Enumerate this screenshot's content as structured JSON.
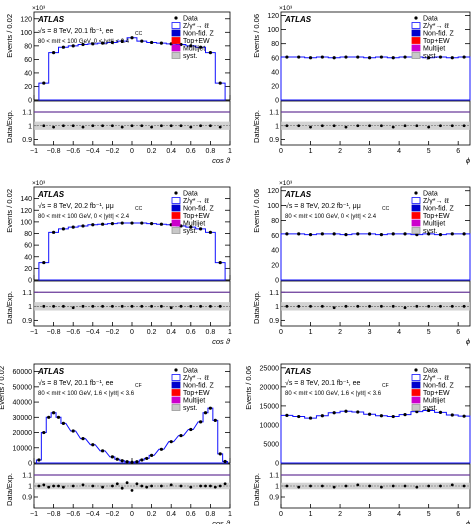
{
  "legend_labels": {
    "data": "Data",
    "signal": "Z/γ*→ ℓℓ",
    "nonfid": "Non-fid. Z",
    "topew": "Top+EW",
    "multijet": "Multijet",
    "syst": "syst."
  },
  "colors": {
    "signal_fill": "#ffffff",
    "signal_line": "#1010ff",
    "nonfid": "#0000cc",
    "topew": "#ff0000",
    "multijet": "#cc00cc",
    "syst": "#c8c8c8",
    "ratio_line": "#6a3a9a"
  },
  "chart_data": [
    {
      "id": "p0",
      "type": "line",
      "atlas": "ATLAS",
      "energy_text": "√s = 8 TeV, 20.1 fb⁻¹, ee",
      "channel_sub": "CC",
      "cuts_text": "80 < mℓℓ < 100 GeV, 0 < |yℓℓ| < 2.4",
      "ylabel": "Events / 0.02",
      "ratio_label": "Data/Exp.",
      "xlabel": "cos ϑ",
      "exponent": "×10³",
      "xlim": [
        -1,
        1
      ],
      "ylim": [
        0,
        130
      ],
      "yticks": [
        "0",
        "20",
        "40",
        "60",
        "80",
        "100",
        "120"
      ],
      "yticks_val": [
        0,
        20,
        40,
        60,
        80,
        100,
        120
      ],
      "xticks": [
        "−1",
        "−0.8",
        "−0.6",
        "−0.4",
        "−0.2",
        "0",
        "0.2",
        "0.4",
        "0.6",
        "0.8",
        "1"
      ],
      "xticks_val": [
        -1,
        -0.8,
        -0.6,
        -0.4,
        -0.2,
        0,
        0.2,
        0.4,
        0.6,
        0.8,
        1
      ],
      "ratio_ticks": [
        "0.9",
        "1",
        "1.1"
      ],
      "ratio_ticks_val": [
        0.9,
        1.0,
        1.1
      ],
      "ratio_ylim": [
        0.86,
        1.18
      ],
      "x": [
        -0.9,
        -0.8,
        -0.7,
        -0.6,
        -0.5,
        -0.4,
        -0.3,
        -0.2,
        -0.1,
        0,
        0.1,
        0.2,
        0.3,
        0.4,
        0.5,
        0.6,
        0.7,
        0.8,
        0.9
      ],
      "values": [
        25,
        70,
        78,
        80,
        82,
        83,
        84,
        85,
        87,
        92,
        87,
        85,
        84,
        83,
        82,
        80,
        78,
        70,
        25
      ],
      "ratio": [
        1.0,
        0.99,
        1.0,
        1.0,
        0.99,
        1.0,
        1.0,
        1.0,
        0.99,
        1.0,
        1.0,
        0.99,
        1.0,
        1.0,
        1.0,
        0.99,
        1.0,
        1.0,
        0.99
      ]
    },
    {
      "id": "p1",
      "type": "line",
      "atlas": "ATLAS",
      "energy_text": "",
      "channel_sub": "",
      "cuts_text": "",
      "ylabel": "Events / 0.06",
      "ratio_label": "Data/Exp.",
      "xlabel": "ϕ",
      "exponent": "×10³",
      "xlim": [
        0,
        6.4
      ],
      "ylim": [
        0,
        125
      ],
      "yticks": [
        "0",
        "20",
        "40",
        "60",
        "80",
        "100",
        "120"
      ],
      "yticks_val": [
        0,
        20,
        40,
        60,
        80,
        100,
        120
      ],
      "xticks": [
        "0",
        "1",
        "2",
        "3",
        "4",
        "5",
        "6"
      ],
      "xticks_val": [
        0,
        1,
        2,
        3,
        4,
        5,
        6
      ],
      "ratio_ticks": [
        "0.9",
        "1",
        "1.1"
      ],
      "ratio_ticks_val": [
        0.9,
        1.0,
        1.1
      ],
      "ratio_ylim": [
        0.86,
        1.18
      ],
      "x": [
        0.2,
        0.6,
        1.0,
        1.4,
        1.8,
        2.2,
        2.6,
        3.0,
        3.4,
        3.8,
        4.2,
        4.6,
        5.0,
        5.4,
        5.8,
        6.2
      ],
      "values": [
        61,
        61,
        60,
        61,
        60,
        61,
        61,
        60,
        61,
        60,
        61,
        61,
        60,
        61,
        60,
        61
      ],
      "ratio": [
        1.0,
        1.0,
        0.99,
        1.0,
        1.0,
        0.99,
        1.0,
        1.0,
        1.0,
        0.99,
        1.0,
        1.0,
        0.99,
        1.0,
        1.0,
        1.0
      ]
    },
    {
      "id": "p2",
      "type": "line",
      "atlas": "ATLAS",
      "energy_text": "√s = 8 TeV, 20.2 fb⁻¹, μμ",
      "channel_sub": "CC",
      "cuts_text": "80 < mℓℓ < 100 GeV, 0 < |yℓℓ| < 2.4",
      "ylabel": "Events / 0.02",
      "ratio_label": "Data/Exp.",
      "xlabel": "cos ϑ",
      "exponent": "×10³",
      "xlim": [
        -1,
        1
      ],
      "ylim": [
        0,
        160
      ],
      "yticks": [
        "0",
        "20",
        "40",
        "60",
        "80",
        "100",
        "120",
        "140"
      ],
      "yticks_val": [
        0,
        20,
        40,
        60,
        80,
        100,
        120,
        140
      ],
      "xticks": [
        "−1",
        "−0.8",
        "−0.6",
        "−0.4",
        "−0.2",
        "0",
        "0.2",
        "0.4",
        "0.6",
        "0.8",
        "1"
      ],
      "xticks_val": [
        -1,
        -0.8,
        -0.6,
        -0.4,
        -0.2,
        0,
        0.2,
        0.4,
        0.6,
        0.8,
        1
      ],
      "ratio_ticks": [
        "0.9",
        "1",
        "1.1"
      ],
      "ratio_ticks_val": [
        0.9,
        1.0,
        1.1
      ],
      "ratio_ylim": [
        0.86,
        1.18
      ],
      "x": [
        -0.9,
        -0.8,
        -0.7,
        -0.6,
        -0.5,
        -0.4,
        -0.3,
        -0.2,
        -0.1,
        0,
        0.1,
        0.2,
        0.3,
        0.4,
        0.5,
        0.6,
        0.7,
        0.8,
        0.9
      ],
      "values": [
        30,
        82,
        88,
        91,
        93,
        95,
        96,
        97,
        98,
        98,
        98,
        97,
        96,
        95,
        93,
        91,
        88,
        82,
        30
      ],
      "ratio": [
        1.0,
        1.0,
        1.0,
        0.99,
        1.0,
        1.0,
        1.0,
        1.0,
        1.0,
        1.0,
        1.0,
        1.0,
        1.0,
        0.99,
        1.0,
        1.0,
        1.0,
        1.0,
        1.0
      ]
    },
    {
      "id": "p3",
      "type": "line",
      "atlas": "ATLAS",
      "energy_text": "√s = 8 TeV, 20.2 fb⁻¹, μμ",
      "channel_sub": "CC",
      "cuts_text": "80 < mℓℓ < 100 GeV, 0 < |yℓℓ| < 2.4",
      "ylabel": "Events / 0.06",
      "ratio_label": "Data/Exp.",
      "xlabel": "ϕ",
      "exponent": "×10³",
      "xlim": [
        0,
        6.4
      ],
      "ylim": [
        0,
        125
      ],
      "yticks": [
        "0",
        "20",
        "40",
        "60",
        "80",
        "100",
        "120"
      ],
      "yticks_val": [
        0,
        20,
        40,
        60,
        80,
        100,
        120
      ],
      "xticks": [
        "0",
        "1",
        "2",
        "3",
        "4",
        "5",
        "6"
      ],
      "xticks_val": [
        0,
        1,
        2,
        3,
        4,
        5,
        6
      ],
      "ratio_ticks": [
        "0.9",
        "1",
        "1.1"
      ],
      "ratio_ticks_val": [
        0.9,
        1.0,
        1.1
      ],
      "ratio_ylim": [
        0.86,
        1.18
      ],
      "x": [
        0.2,
        0.6,
        1.0,
        1.4,
        1.8,
        2.2,
        2.6,
        3.0,
        3.4,
        3.8,
        4.2,
        4.6,
        5.0,
        5.4,
        5.8,
        6.2
      ],
      "values": [
        62,
        62,
        61,
        62,
        62,
        61,
        62,
        62,
        61,
        62,
        62,
        61,
        62,
        61,
        62,
        62
      ],
      "ratio": [
        1.0,
        1.0,
        1.0,
        1.0,
        0.99,
        1.0,
        1.0,
        1.0,
        1.0,
        1.0,
        0.99,
        1.0,
        1.0,
        1.0,
        1.0,
        1.0
      ]
    },
    {
      "id": "p4",
      "type": "line",
      "atlas": "ATLAS",
      "energy_text": "√s = 8 TeV, 20.1 fb⁻¹, ee",
      "channel_sub": "CF",
      "cuts_text": "80 < mℓℓ < 100 GeV, 1.6 < |yℓℓ| < 3.6",
      "ylabel": "Events / 0.02",
      "ratio_label": "Data/Exp.",
      "xlabel": "cos ϑ",
      "exponent": "",
      "xlim": [
        -1,
        1
      ],
      "ylim": [
        0,
        65000
      ],
      "yticks": [
        "0",
        "10000",
        "20000",
        "30000",
        "40000",
        "50000",
        "60000"
      ],
      "yticks_val": [
        0,
        10000,
        20000,
        30000,
        40000,
        50000,
        60000
      ],
      "xticks": [
        "−1",
        "−0.8",
        "−0.6",
        "−0.4",
        "−0.2",
        "0",
        "0.2",
        "0.4",
        "0.6",
        "0.8",
        "1"
      ],
      "xticks_val": [
        -1,
        -0.8,
        -0.6,
        -0.4,
        -0.2,
        0,
        0.2,
        0.4,
        0.6,
        0.8,
        1
      ],
      "ratio_ticks": [
        "0.9",
        "1",
        "1.1"
      ],
      "ratio_ticks_val": [
        0.9,
        1.0,
        1.1
      ],
      "ratio_ylim": [
        0.8,
        1.2
      ],
      "x": [
        -0.95,
        -0.9,
        -0.85,
        -0.8,
        -0.75,
        -0.7,
        -0.6,
        -0.5,
        -0.4,
        -0.3,
        -0.2,
        -0.15,
        -0.1,
        -0.05,
        0,
        0.05,
        0.1,
        0.15,
        0.2,
        0.3,
        0.4,
        0.5,
        0.6,
        0.7,
        0.75,
        0.8,
        0.85,
        0.9,
        0.95
      ],
      "values": [
        2000,
        20000,
        30000,
        33000,
        30000,
        26000,
        21000,
        16000,
        12000,
        8000,
        4000,
        2500,
        1500,
        800,
        500,
        800,
        2000,
        3000,
        5000,
        9000,
        14000,
        18000,
        22000,
        27000,
        33000,
        36000,
        28000,
        6000,
        1000
      ],
      "ratio": [
        1.0,
        1.01,
        0.99,
        1.0,
        1.0,
        0.99,
        1.0,
        1.01,
        1.0,
        0.99,
        1.0,
        1.02,
        0.98,
        1.03,
        0.96,
        1.02,
        1.0,
        0.99,
        1.0,
        1.0,
        1.01,
        1.0,
        0.99,
        1.0,
        1.0,
        1.0,
        0.99,
        1.0,
        1.02
      ]
    },
    {
      "id": "p5",
      "type": "line",
      "atlas": "ATLAS",
      "energy_text": "√s = 8 TeV, 20.1 fb⁻¹, ee",
      "channel_sub": "CF",
      "cuts_text": "80 < mℓℓ < 100 GeV, 1.6 < |yℓℓ| < 3.6",
      "ylabel": "Events / 0.06",
      "ratio_label": "Data/Exp.",
      "xlabel": "ϕ",
      "exponent": "",
      "xlim": [
        0,
        6.4
      ],
      "ylim": [
        0,
        26000
      ],
      "yticks": [
        "0",
        "5000",
        "10000",
        "15000",
        "20000",
        "25000"
      ],
      "yticks_val": [
        0,
        5000,
        10000,
        15000,
        20000,
        25000
      ],
      "xticks": [
        "0",
        "1",
        "2",
        "3",
        "4",
        "5",
        "6"
      ],
      "xticks_val": [
        0,
        1,
        2,
        3,
        4,
        5,
        6
      ],
      "ratio_ticks": [
        "0.9",
        "1",
        "1.1"
      ],
      "ratio_ticks_val": [
        0.9,
        1.0,
        1.1
      ],
      "ratio_ylim": [
        0.8,
        1.2
      ],
      "x": [
        0.2,
        0.6,
        1.0,
        1.4,
        1.8,
        2.2,
        2.6,
        3.0,
        3.4,
        3.8,
        4.2,
        4.6,
        5.0,
        5.4,
        5.8,
        6.2
      ],
      "values": [
        12500,
        12200,
        11800,
        12400,
        13200,
        13600,
        13400,
        12800,
        12400,
        12200,
        12700,
        13500,
        13800,
        13300,
        12600,
        12300
      ],
      "ratio": [
        1.0,
        0.99,
        1.0,
        1.0,
        0.99,
        1.0,
        1.01,
        1.0,
        0.99,
        1.0,
        1.0,
        0.99,
        1.0,
        1.0,
        1.01,
        1.0
      ]
    }
  ]
}
